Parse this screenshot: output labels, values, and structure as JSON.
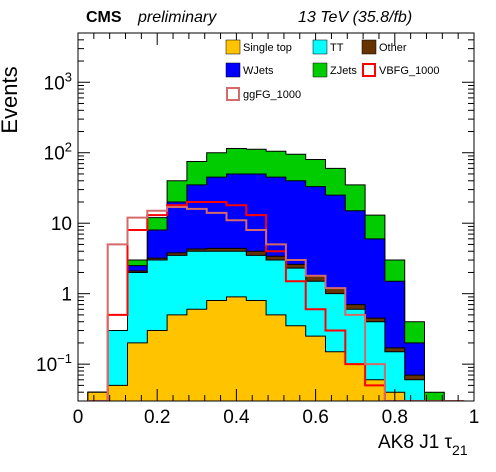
{
  "chart_data": {
    "type": "area",
    "header": {
      "experiment": "CMS",
      "status": "preliminary",
      "energy": "13 TeV (35.8/fb)"
    },
    "xlabel": "AK8 J1 τ",
    "xlabel_sub": "21",
    "ylabel": "Events",
    "xlim": [
      0,
      1
    ],
    "ylim": [
      0.03,
      5000
    ],
    "y_scale": "log",
    "grid": false,
    "legend_position": "top-right",
    "x_ticks": [
      {
        "value": 0,
        "label": "0"
      },
      {
        "value": 0.2,
        "label": "0.2"
      },
      {
        "value": 0.4,
        "label": "0.4"
      },
      {
        "value": 0.6,
        "label": "0.6"
      },
      {
        "value": 0.8,
        "label": "0.8"
      },
      {
        "value": 1,
        "label": "1"
      }
    ],
    "y_ticks": [
      {
        "value": 0.1,
        "base": "10",
        "exp": "−1"
      },
      {
        "value": 1,
        "base": "1",
        "exp": ""
      },
      {
        "value": 10,
        "base": "10",
        "exp": ""
      },
      {
        "value": 100,
        "base": "10",
        "exp": "2"
      },
      {
        "value": 1000,
        "base": "10",
        "exp": "3"
      }
    ],
    "x": [
      0.05,
      0.1,
      0.15,
      0.2,
      0.25,
      0.3,
      0.35,
      0.4,
      0.45,
      0.5,
      0.55,
      0.6,
      0.65,
      0.7,
      0.75,
      0.8,
      0.85,
      0.9,
      0.95
    ],
    "stacked": [
      {
        "name": "Single top",
        "color": "#ffc300",
        "values": [
          0.04,
          0.05,
          0.2,
          0.3,
          0.5,
          0.6,
          0.8,
          0.9,
          0.8,
          0.5,
          0.35,
          0.25,
          0.15,
          0.1,
          0.06,
          0.04,
          0.03,
          0.03,
          0.03
        ]
      },
      {
        "name": "TT",
        "color": "#00ffff",
        "values": [
          0.04,
          0.3,
          2,
          3,
          3.5,
          4,
          4,
          4,
          3.5,
          3,
          2.3,
          1.5,
          1,
          0.6,
          0.4,
          0.15,
          0.06,
          0.03,
          0.03
        ]
      },
      {
        "name": "Other",
        "color": "#663300",
        "values": [
          0.04,
          0.3,
          2.1,
          3.2,
          3.8,
          4.3,
          4.4,
          4.4,
          4,
          3.4,
          2.6,
          1.8,
          1.2,
          0.7,
          0.45,
          0.17,
          0.07,
          0.03,
          0.03
        ]
      },
      {
        "name": "WJets",
        "color": "#0000ff",
        "values": [
          0.04,
          0.3,
          2.5,
          8,
          20,
          35,
          45,
          50,
          50,
          45,
          40,
          33,
          25,
          15,
          6,
          1.5,
          0.2,
          0.03,
          0.03
        ]
      },
      {
        "name": "ZJets",
        "color": "#00cc00",
        "values": [
          0.04,
          0.3,
          3,
          12,
          40,
          75,
          100,
          115,
          112,
          105,
          95,
          80,
          60,
          35,
          13,
          3,
          0.4,
          0.04,
          0.03
        ]
      }
    ],
    "overlays": [
      {
        "name": "VBFG_1000",
        "color": "#ff0000",
        "values": [
          0.03,
          0.5,
          8,
          13,
          18,
          20,
          20,
          18,
          13,
          4,
          1.5,
          0.6,
          0.3,
          0.1,
          0.05,
          0.03,
          0.03,
          0.03,
          0.03
        ]
      },
      {
        "name": "ggFG_1000",
        "color": "#d46a6a",
        "values": [
          0.03,
          5,
          12,
          15,
          17,
          16,
          14,
          11,
          8,
          5,
          3,
          1.8,
          1.2,
          0.5,
          0.1,
          0.03,
          0.03,
          0.03,
          0.03
        ]
      }
    ],
    "legend": [
      {
        "label": "Single top",
        "color": "#ffc300",
        "style": "fill"
      },
      {
        "label": "TT",
        "color": "#00ffff",
        "style": "fill"
      },
      {
        "label": "Other",
        "color": "#663300",
        "style": "fill"
      },
      {
        "label": "WJets",
        "color": "#0000ff",
        "style": "fill"
      },
      {
        "label": "ZJets",
        "color": "#00cc00",
        "style": "fill"
      },
      {
        "label": "VBFG_1000",
        "color": "#ff0000",
        "style": "line"
      },
      {
        "label": "ggFG_1000",
        "color": "#d46a6a",
        "style": "line"
      }
    ]
  }
}
